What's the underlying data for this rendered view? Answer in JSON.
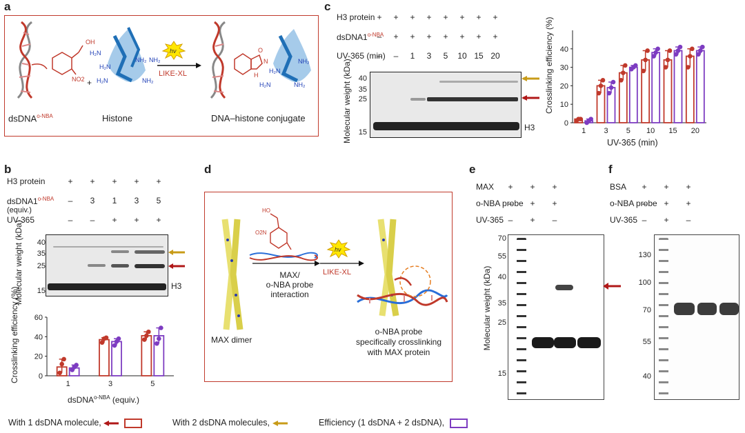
{
  "colors": {
    "red": "#c0392b",
    "purple": "#7d3cc1",
    "gold": "#c89b18",
    "darkred": "#b01818",
    "blue": "#1f6fb6"
  },
  "panel_a": {
    "label": "a",
    "dsdna_label": "dsDNA",
    "dsdna_sup": "o-NBA",
    "histone_label": "Histone",
    "conjugate_label": "DNA–histone conjugate",
    "hv": "hν",
    "reaction": "LIKE-XL",
    "plus": "+",
    "oh": "OH",
    "no2": "NO2",
    "nh2": "NH2",
    "n": "N",
    "hn": "HN",
    "h": "H",
    "o": "O"
  },
  "panel_b": {
    "label": "b",
    "rows": [
      {
        "name": "H3 protein",
        "values": [
          "+",
          "+",
          "+",
          "+",
          "+"
        ]
      },
      {
        "name": "dsDNA1",
        "sup": "o-NBA",
        "name2": "(equiv.)",
        "values": [
          "–",
          "3",
          "1",
          "3",
          "5"
        ]
      },
      {
        "name": "UV-365",
        "values": [
          "–",
          "–",
          "+",
          "+",
          "+"
        ]
      }
    ],
    "mw_label": "Molecular weight (kDa)",
    "mw_ticks": [
      "40",
      "35",
      "25",
      "15"
    ],
    "h3": "H3",
    "ylabel": "Crosslinking efficiency (%)",
    "xlabel": "dsDNA",
    "xlabel_sup": "o-NBA",
    "xlabel_suffix": " (equiv.)"
  },
  "panel_c": {
    "label": "c",
    "rows": [
      {
        "name": "H3 protein",
        "values": [
          "+",
          "+",
          "+",
          "+",
          "+",
          "+",
          "+",
          "+"
        ]
      },
      {
        "name": "dsDNA1",
        "sup": "o-NBA",
        "values": [
          "–",
          "+",
          "+",
          "+",
          "+",
          "+",
          "+",
          "+"
        ]
      },
      {
        "name": "UV-365 (min)",
        "values": [
          "–",
          "–",
          "1",
          "3",
          "5",
          "10",
          "15",
          "20"
        ]
      }
    ],
    "mw_label": "Molecular weight (kDa)",
    "mw_ticks": [
      "40",
      "35",
      "25",
      "15"
    ],
    "h3": "H3",
    "ylabel": "Crosslinking efficiency (%)",
    "xlabel": "UV-365 (min)"
  },
  "panel_d": {
    "label": "d",
    "max_dimer": "MAX dimer",
    "interaction": "MAX/\no-NBA probe\ninteraction",
    "hv": "hν",
    "reaction": "LIKE-XL",
    "result": "o-NBA probe\nspecifically crosslinking\nwith MAX protein",
    "no2": "O2N",
    "oh": "HO"
  },
  "panel_e": {
    "label": "e",
    "rows": [
      {
        "name": "MAX",
        "values": [
          "+",
          "+",
          "+"
        ]
      },
      {
        "name": "o-NBA probe",
        "values": [
          "–",
          "+",
          "+"
        ]
      },
      {
        "name": "UV-365",
        "values": [
          "–",
          "+",
          "–"
        ]
      }
    ],
    "mw_label": "Molecular weight (kDa)",
    "mw_ticks": [
      "70",
      "55",
      "40",
      "35",
      "25",
      "15"
    ]
  },
  "panel_f": {
    "label": "f",
    "rows": [
      {
        "name": "BSA",
        "values": [
          "+",
          "+",
          "+"
        ]
      },
      {
        "name": "o-NBA probe",
        "values": [
          "–",
          "+",
          "+"
        ]
      },
      {
        "name": "UV-365",
        "values": [
          "–",
          "+",
          "–"
        ]
      }
    ],
    "mw_ticks": [
      "130",
      "100",
      "70",
      "55",
      "40"
    ]
  },
  "legend": {
    "item1": "With 1 dsDNA molecule,",
    "item2": "With 2 dsDNA molecules,",
    "item3": "Efficiency (1 dsDNA + 2 dsDNA),"
  },
  "chart_data": [
    {
      "type": "bar",
      "panel": "b",
      "categories": [
        "1",
        "3",
        "5"
      ],
      "series": [
        {
          "name": "With 1 dsDNA molecule",
          "values": [
            9,
            37,
            41
          ],
          "points": [
            [
              3,
              12,
              17
            ],
            [
              34,
              38,
              39
            ],
            [
              37,
              41,
              45
            ]
          ]
        },
        {
          "name": "Efficiency (1 dsDNA + 2 dsDNA)",
          "values": [
            8,
            35,
            41
          ],
          "points": [
            [
              6,
              9,
              11
            ],
            [
              31,
              35,
              38
            ],
            [
              33,
              38,
              49
            ]
          ]
        }
      ],
      "title": "",
      "xlabel": "dsDNA o-NBA (equiv.)",
      "ylabel": "Crosslinking efficiency (%)",
      "ylim": [
        0,
        60
      ],
      "yticks": [
        "0",
        "20",
        "40",
        "60"
      ]
    },
    {
      "type": "bar",
      "panel": "c",
      "categories": [
        "1",
        "3",
        "5",
        "10",
        "15",
        "20"
      ],
      "series": [
        {
          "name": "With 1 dsDNA molecule",
          "values": [
            2,
            20,
            27,
            34,
            34,
            36
          ],
          "points": [
            [
              1,
              2,
              2
            ],
            [
              16,
              20,
              23
            ],
            [
              23,
              27,
              31
            ],
            [
              28,
              34,
              39
            ],
            [
              30,
              34,
              39
            ],
            [
              30,
              36,
              40
            ]
          ]
        },
        {
          "name": "Efficiency (1 dsDNA + 2 dsDNA)",
          "values": [
            1,
            19,
            30,
            38,
            39,
            39
          ],
          "points": [
            [
              0,
              1,
              2
            ],
            [
              16,
              19,
              22
            ],
            [
              29,
              30,
              31
            ],
            [
              36,
              38,
              40
            ],
            [
              37,
              39,
              41
            ],
            [
              37,
              39,
              41
            ]
          ]
        }
      ],
      "title": "",
      "xlabel": "UV-365 (min)",
      "ylabel": "Crosslinking efficiency (%)",
      "ylim": [
        0,
        50
      ],
      "yticks": [
        "0",
        "10",
        "20",
        "30",
        "40"
      ]
    }
  ]
}
